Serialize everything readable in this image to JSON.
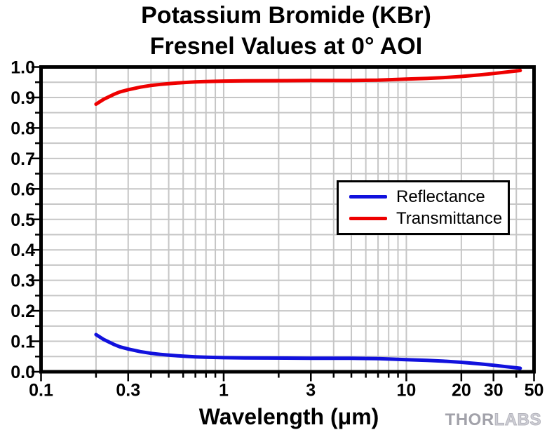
{
  "title": {
    "line1": "Potassium Bromide (KBr)",
    "line2": "Fresnel Values at 0° AOI"
  },
  "axes": {
    "x_label": "Wavelength (μm)"
  },
  "branding": {
    "thor": "THOR",
    "labs": "LABS"
  },
  "colors": {
    "background": "#ffffff",
    "axis": "#000000",
    "grid": "#c6c6c6",
    "reflectance": "#1111dd",
    "transmittance": "#ee0000",
    "logo_thor": "#a2a2aa",
    "logo_labs": "#cfcfd6"
  },
  "chart_data": {
    "type": "line",
    "title": "Potassium Bromide (KBr) Fresnel Values at 0° AOI",
    "xlabel": "Wavelength (μm)",
    "ylabel": "",
    "x_scale": "log",
    "xlim": [
      0.1,
      50
    ],
    "ylim": [
      0.0,
      1.0
    ],
    "grid": true,
    "grid_color": "#c6c6c6",
    "legend_position": "center-right",
    "x_tick_labels": [
      "0.1",
      "0.3",
      "1",
      "3",
      "10",
      "20",
      "30",
      "50"
    ],
    "y_tick_labels": [
      "0.0",
      "0.1",
      "0.2",
      "0.3",
      "0.4",
      "0.5",
      "0.6",
      "0.7",
      "0.8",
      "0.9",
      "1.0"
    ],
    "y_minor_step": 0.05,
    "x": [
      0.2,
      0.22,
      0.25,
      0.27,
      0.3,
      0.35,
      0.4,
      0.45,
      0.5,
      0.6,
      0.7,
      0.8,
      1.0,
      1.3,
      1.7,
      2.2,
      3,
      4,
      5,
      7,
      10,
      13,
      16,
      20,
      25,
      30,
      35,
      40,
      42
    ],
    "series": [
      {
        "name": "Reflectance",
        "color": "#1111dd",
        "values": [
          0.122,
          0.106,
          0.09,
          0.082,
          0.0745,
          0.066,
          0.0605,
          0.057,
          0.0545,
          0.051,
          0.049,
          0.0478,
          0.0462,
          0.0455,
          0.045,
          0.0448,
          0.0445,
          0.0443,
          0.0441,
          0.0432,
          0.0396,
          0.0372,
          0.0347,
          0.031,
          0.0262,
          0.0213,
          0.0168,
          0.013,
          0.0115
        ]
      },
      {
        "name": "Transmittance",
        "color": "#ee0000",
        "values": [
          0.878,
          0.894,
          0.91,
          0.918,
          0.9255,
          0.934,
          0.9395,
          0.943,
          0.9455,
          0.949,
          0.951,
          0.9522,
          0.9538,
          0.9545,
          0.955,
          0.9552,
          0.9555,
          0.9557,
          0.9559,
          0.9568,
          0.9604,
          0.9628,
          0.9653,
          0.969,
          0.9738,
          0.9787,
          0.9832,
          0.987,
          0.9885
        ]
      }
    ]
  }
}
